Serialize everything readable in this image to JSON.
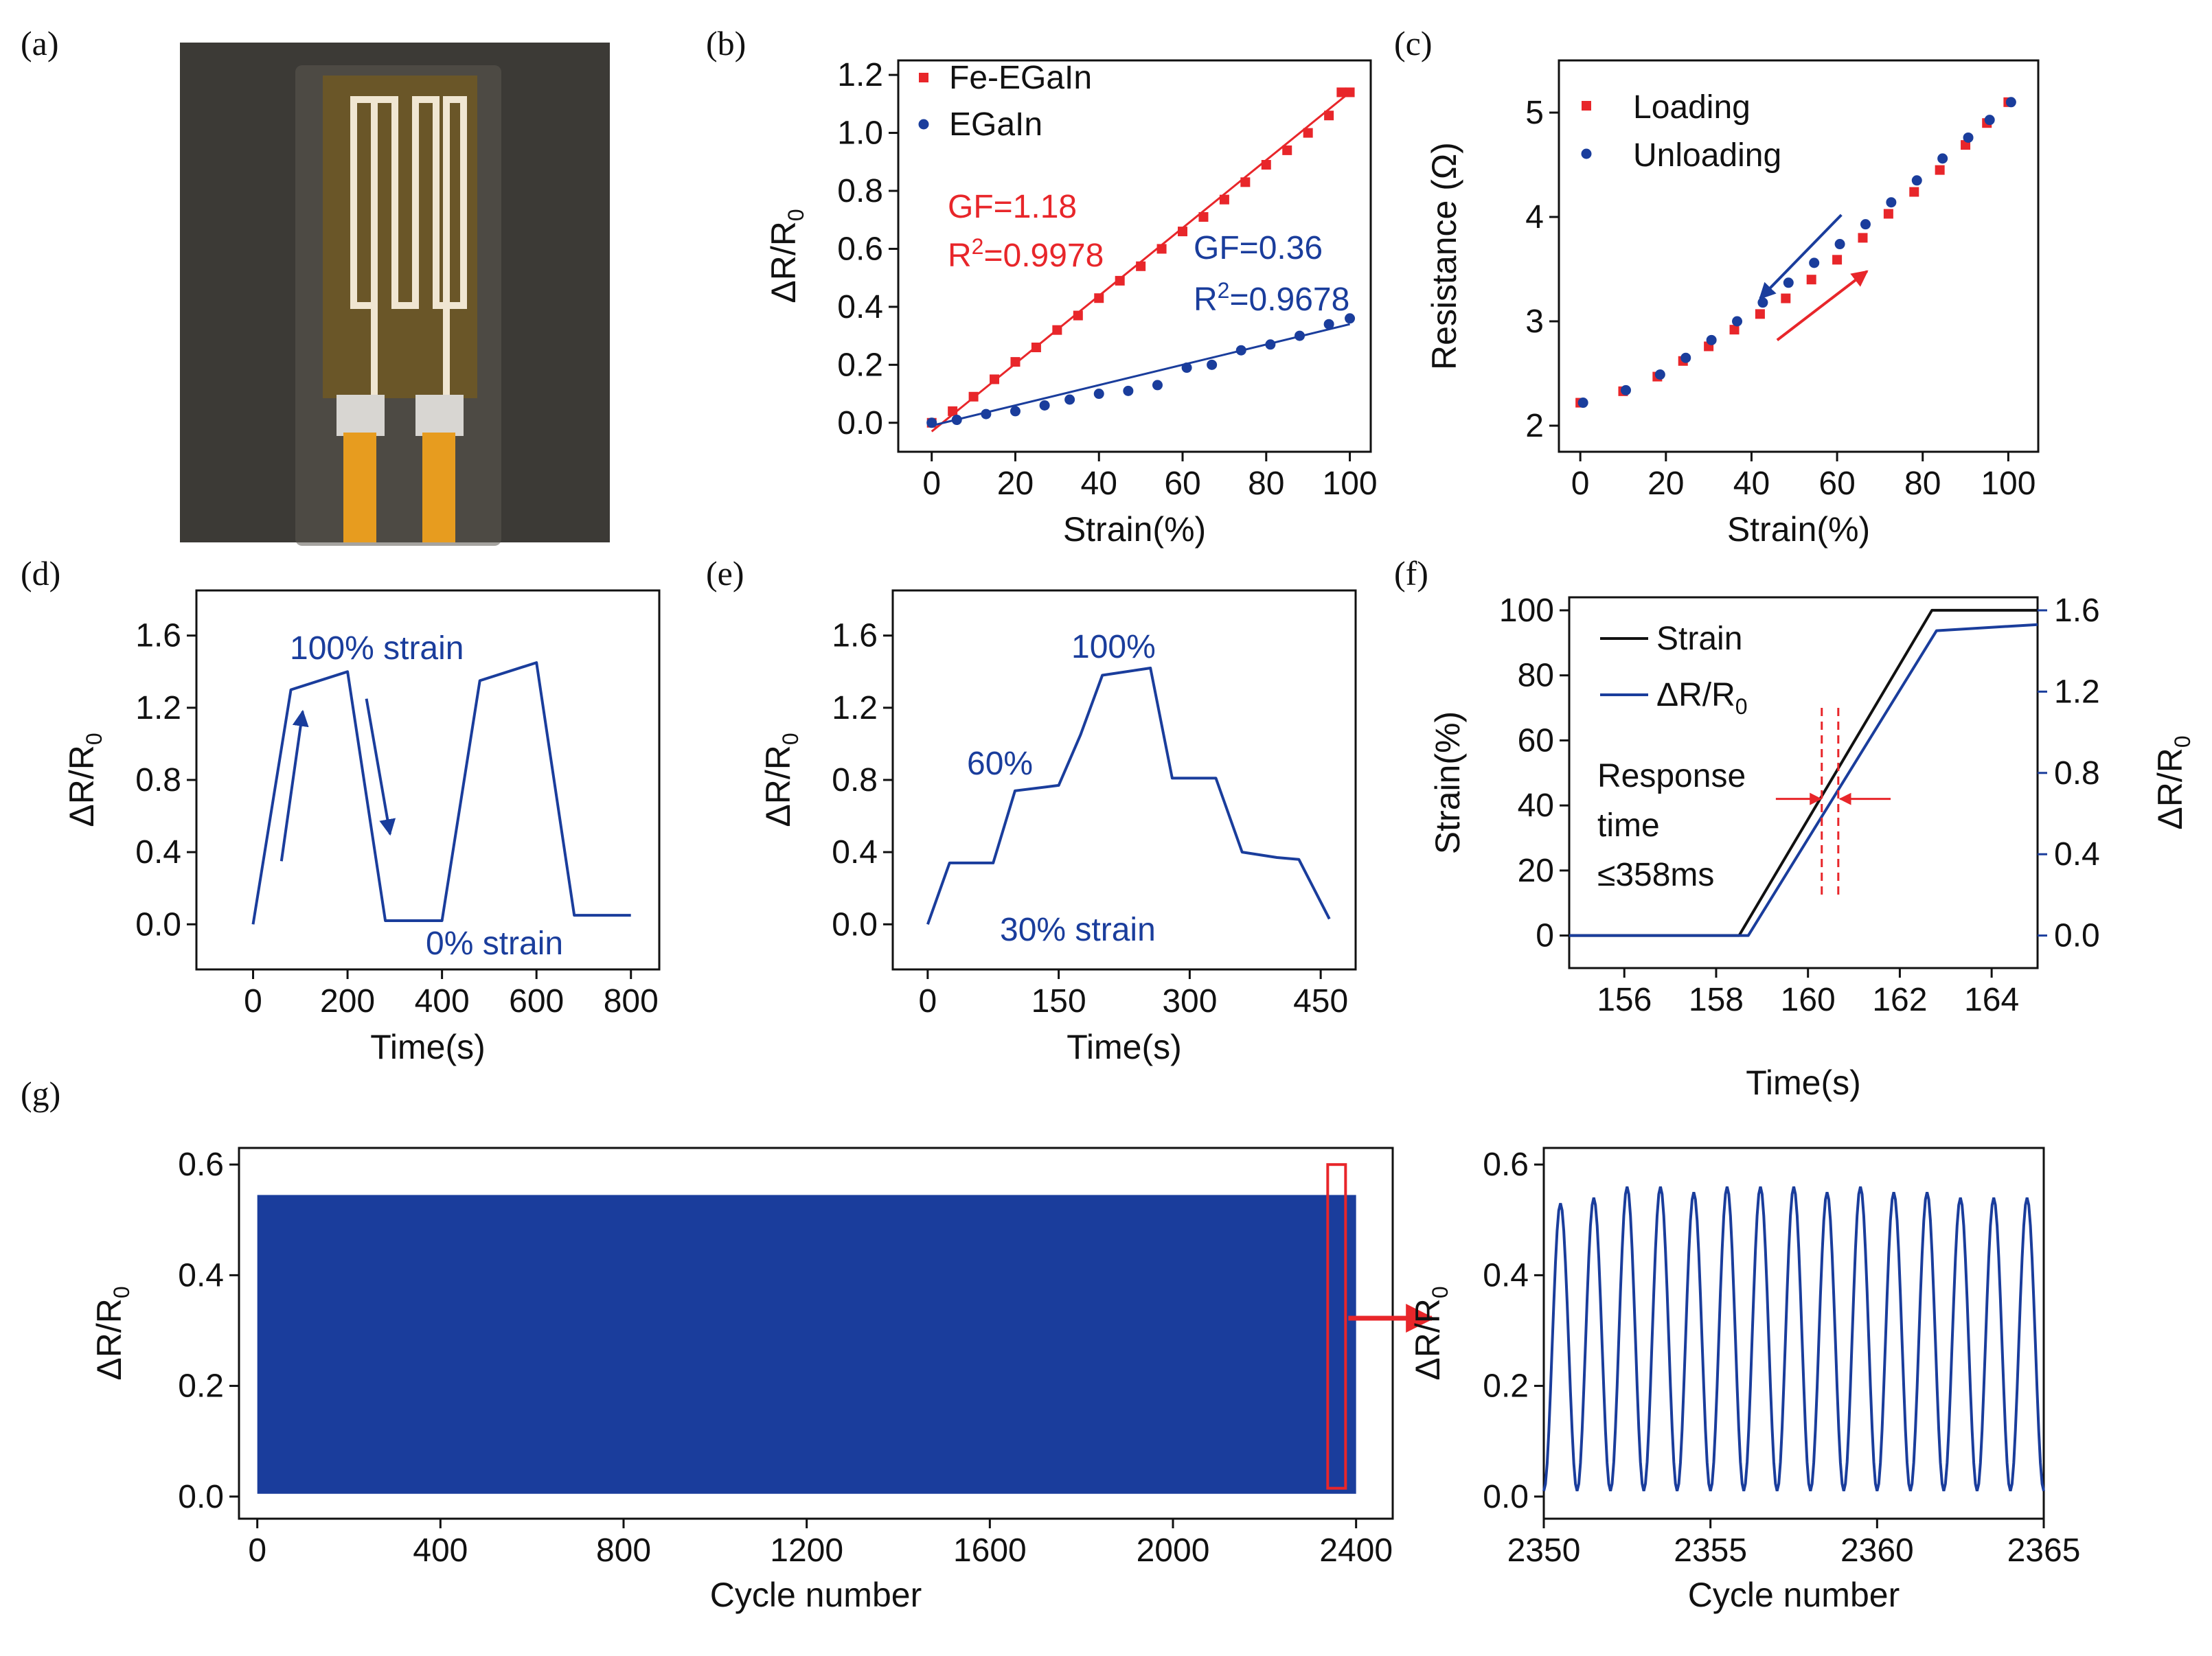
{
  "panel_labels": [
    "(a)",
    "(b)",
    "(c)",
    "(d)",
    "(e)",
    "(f)",
    "(g)"
  ],
  "colors": {
    "red": "#e8262a",
    "blue": "#1a3d9c",
    "black": "#111111",
    "device_bg": "#3c3a36",
    "device_film": "#6a5628",
    "electrode": "#f0e6d2",
    "cable": "#e79c1f"
  },
  "chart_data": [
    {
      "id": "a",
      "type": "image",
      "description_icon": "photo-sensor-icon"
    },
    {
      "id": "b",
      "type": "scatter",
      "xlabel": "Strain(%)",
      "ylabel": "ΔR/R",
      "ylabel_sub": "0",
      "xlim": [
        -8,
        105
      ],
      "ylim": [
        -0.1,
        1.25
      ],
      "xticks": [
        0,
        20,
        40,
        60,
        80,
        100
      ],
      "yticks": [
        0.0,
        0.2,
        0.4,
        0.6,
        0.8,
        1.0,
        1.2
      ],
      "ytick_labels": [
        "0.0",
        "0.2",
        "0.4",
        "0.6",
        "0.8",
        "1.0",
        "1.2"
      ],
      "series": [
        {
          "name": "Fe-EGaIn",
          "color": "#e8262a",
          "marker": "square",
          "x": [
            0,
            5,
            10,
            15,
            20,
            25,
            30,
            35,
            40,
            45,
            50,
            55,
            60,
            65,
            70,
            75,
            80,
            85,
            90,
            95,
            98,
            100
          ],
          "y": [
            0.0,
            0.04,
            0.09,
            0.15,
            0.21,
            0.26,
            0.32,
            0.37,
            0.43,
            0.49,
            0.54,
            0.6,
            0.66,
            0.71,
            0.77,
            0.83,
            0.89,
            0.94,
            1.0,
            1.06,
            1.14,
            1.14
          ],
          "fit": {
            "x": [
              0,
              100
            ],
            "y": [
              -0.03,
              1.14
            ]
          }
        },
        {
          "name": "EGaIn",
          "color": "#1a3d9c",
          "marker": "circle",
          "x": [
            0,
            6,
            13,
            20,
            27,
            33,
            40,
            47,
            54,
            61,
            67,
            74,
            81,
            88,
            95,
            100
          ],
          "y": [
            0.0,
            0.01,
            0.03,
            0.04,
            0.06,
            0.08,
            0.1,
            0.11,
            0.13,
            0.19,
            0.2,
            0.25,
            0.27,
            0.3,
            0.34,
            0.36
          ],
          "fit": {
            "x": [
              0,
              100
            ],
            "y": [
              -0.01,
              0.34
            ]
          }
        }
      ],
      "annotations": [
        {
          "text": "GF=1.18",
          "color": "#e8262a"
        },
        {
          "text": "R",
          "sup": "2",
          "rest": "=0.9978",
          "color": "#e8262a"
        },
        {
          "text": "GF=0.36",
          "color": "#1a3d9c"
        },
        {
          "text": "R",
          "sup": "2",
          "rest": "=0.9678",
          "color": "#1a3d9c"
        }
      ]
    },
    {
      "id": "c",
      "type": "scatter",
      "xlabel": "Strain(%)",
      "ylabel": "Resistance (Ω)",
      "xlim": [
        -5,
        107
      ],
      "ylim": [
        1.75,
        5.5
      ],
      "xticks": [
        0,
        20,
        40,
        60,
        80,
        100
      ],
      "yticks": [
        2,
        3,
        4,
        5
      ],
      "series": [
        {
          "name": "Loading",
          "color": "#e8262a",
          "marker": "square",
          "x": [
            0,
            10,
            18,
            24,
            30,
            36,
            42,
            48,
            54,
            60,
            66,
            72,
            78,
            84,
            90,
            95,
            100
          ],
          "y": [
            2.22,
            2.33,
            2.47,
            2.62,
            2.76,
            2.92,
            3.07,
            3.22,
            3.4,
            3.59,
            3.8,
            4.03,
            4.24,
            4.45,
            4.69,
            4.9,
            5.1
          ]
        },
        {
          "name": "Unloading",
          "color": "#1a3d9c",
          "marker": "circle",
          "x": [
            0,
            10,
            18,
            24,
            30,
            36,
            42,
            48,
            54,
            60,
            66,
            72,
            78,
            84,
            90,
            95,
            100
          ],
          "y": [
            2.22,
            2.34,
            2.49,
            2.65,
            2.82,
            3.0,
            3.18,
            3.37,
            3.56,
            3.74,
            3.93,
            4.14,
            4.35,
            4.56,
            4.76,
            4.93,
            5.1
          ]
        }
      ],
      "arrows": [
        {
          "color": "#1a3d9c",
          "from": [
            61,
            4.02
          ],
          "to": [
            42,
            3.22
          ]
        },
        {
          "color": "#e8262a",
          "from": [
            46,
            2.82
          ],
          "to": [
            67,
            3.48
          ]
        }
      ]
    },
    {
      "id": "d",
      "type": "line",
      "xlabel": "Time(s)",
      "ylabel": "ΔR/R",
      "ylabel_sub": "0",
      "xlim": [
        -120,
        860
      ],
      "ylim": [
        -0.25,
        1.85
      ],
      "xticks": [
        0,
        200,
        400,
        600,
        800
      ],
      "yticks": [
        0.0,
        0.4,
        0.8,
        1.2,
        1.6
      ],
      "ytick_labels": [
        "0.0",
        "0.4",
        "0.8",
        "1.2",
        "1.6"
      ],
      "series": [
        {
          "name": "ΔR/R0",
          "color": "#1a3d9c",
          "x": [
            0,
            80,
            200,
            280,
            400,
            480,
            600,
            680,
            800
          ],
          "y": [
            0.0,
            1.3,
            1.4,
            0.02,
            0.02,
            1.35,
            1.45,
            0.05,
            0.05
          ]
        }
      ],
      "annotations": [
        {
          "text": "100% strain",
          "color": "#1a3d9c"
        },
        {
          "text": "0% strain",
          "color": "#1a3d9c"
        }
      ],
      "arrows": [
        {
          "color": "#1a3d9c",
          "from": [
            60,
            0.35
          ],
          "to": [
            105,
            1.18
          ]
        },
        {
          "color": "#1a3d9c",
          "from": [
            240,
            1.25
          ],
          "to": [
            290,
            0.5
          ]
        }
      ]
    },
    {
      "id": "e",
      "type": "line",
      "xlabel": "Time(s)",
      "ylabel": "ΔR/R",
      "ylabel_sub": "0",
      "xlim": [
        -40,
        490
      ],
      "ylim": [
        -0.25,
        1.85
      ],
      "xticks": [
        0,
        150,
        300,
        450
      ],
      "yticks": [
        0.0,
        0.4,
        0.8,
        1.2,
        1.6
      ],
      "ytick_labels": [
        "0.0",
        "0.4",
        "0.8",
        "1.2",
        "1.6"
      ],
      "series": [
        {
          "name": "ΔR/R0",
          "color": "#1a3d9c",
          "x": [
            0,
            25,
            75,
            100,
            150,
            175,
            200,
            255,
            280,
            330,
            360,
            400,
            425,
            460
          ],
          "y": [
            0.0,
            0.34,
            0.34,
            0.74,
            0.77,
            1.05,
            1.38,
            1.42,
            0.81,
            0.81,
            0.4,
            0.37,
            0.36,
            0.03
          ]
        }
      ],
      "annotations": [
        {
          "text": "100%",
          "color": "#1a3d9c"
        },
        {
          "text": "60%",
          "color": "#1a3d9c"
        },
        {
          "text": "30% strain",
          "color": "#1a3d9c"
        }
      ]
    },
    {
      "id": "f",
      "type": "line",
      "xlabel": "Time(s)",
      "ylabel": "Strain(%)",
      "ylabel_right": "ΔR/R",
      "ylabel_right_sub": "0",
      "xlim": [
        154.8,
        165.0
      ],
      "ylim": [
        -10,
        104
      ],
      "ylim_right": [
        -0.16,
        1.664
      ],
      "xticks": [
        156,
        158,
        160,
        162,
        164
      ],
      "yticks": [
        0,
        20,
        40,
        60,
        80,
        100
      ],
      "yticks_right": [
        0.0,
        0.4,
        0.8,
        1.2,
        1.6
      ],
      "yticks_right_labels": [
        "0.0",
        "0.4",
        "0.8",
        "1.2",
        "1.6"
      ],
      "series": [
        {
          "name": "Strain",
          "color": "#111111",
          "axis": "left",
          "x": [
            154.8,
            158.5,
            162.7,
            165.0
          ],
          "y": [
            0,
            0,
            100,
            100
          ]
        },
        {
          "name": "ΔR/R",
          "name_sub": "0",
          "color": "#1a3d9c",
          "axis": "right",
          "x": [
            154.8,
            158.7,
            162.8,
            165.0
          ],
          "y": [
            0,
            0,
            1.5,
            1.53
          ]
        }
      ],
      "annotations": [
        {
          "text": "Response",
          "color": "#111111"
        },
        {
          "text": "time",
          "color": "#111111"
        },
        {
          "text": "≤358ms",
          "color": "#111111"
        }
      ],
      "marker_lines": [
        160.3,
        160.66
      ]
    },
    {
      "id": "g_left",
      "type": "line",
      "xlabel": "Cycle number",
      "ylabel": "ΔR/R",
      "ylabel_sub": "0",
      "xlim": [
        -40,
        2480
      ],
      "ylim": [
        -0.04,
        0.63
      ],
      "xticks": [
        0,
        400,
        800,
        1200,
        1600,
        2000,
        2400
      ],
      "yticks": [
        0.0,
        0.2,
        0.4,
        0.6
      ],
      "ytick_labels": [
        "0.0",
        "0.2",
        "0.4",
        "0.6"
      ],
      "series": [
        {
          "name": "ΔR/R0",
          "color": "#1a3d9c",
          "fill_band": [
            0.005,
            0.545
          ],
          "x_range": [
            0,
            2400
          ]
        }
      ],
      "highlight_range": [
        2350,
        2365
      ]
    },
    {
      "id": "g_right",
      "type": "line",
      "xlabel": "Cycle number",
      "ylabel": "ΔR/R",
      "ylabel_sub": "0",
      "xlim": [
        2350,
        2365
      ],
      "ylim": [
        -0.04,
        0.63
      ],
      "xticks": [
        2350,
        2355,
        2360,
        2365
      ],
      "yticks": [
        0.0,
        0.2,
        0.4,
        0.6
      ],
      "ytick_labels": [
        "0.0",
        "0.2",
        "0.4",
        "0.6"
      ],
      "series": [
        {
          "name": "ΔR/R0",
          "color": "#1a3d9c",
          "cycle_peaks": [
            0.53,
            0.54,
            0.56,
            0.56,
            0.55,
            0.56,
            0.56,
            0.56,
            0.55,
            0.56,
            0.55,
            0.55,
            0.54,
            0.54,
            0.54
          ],
          "baseline": 0.01
        }
      ]
    }
  ]
}
